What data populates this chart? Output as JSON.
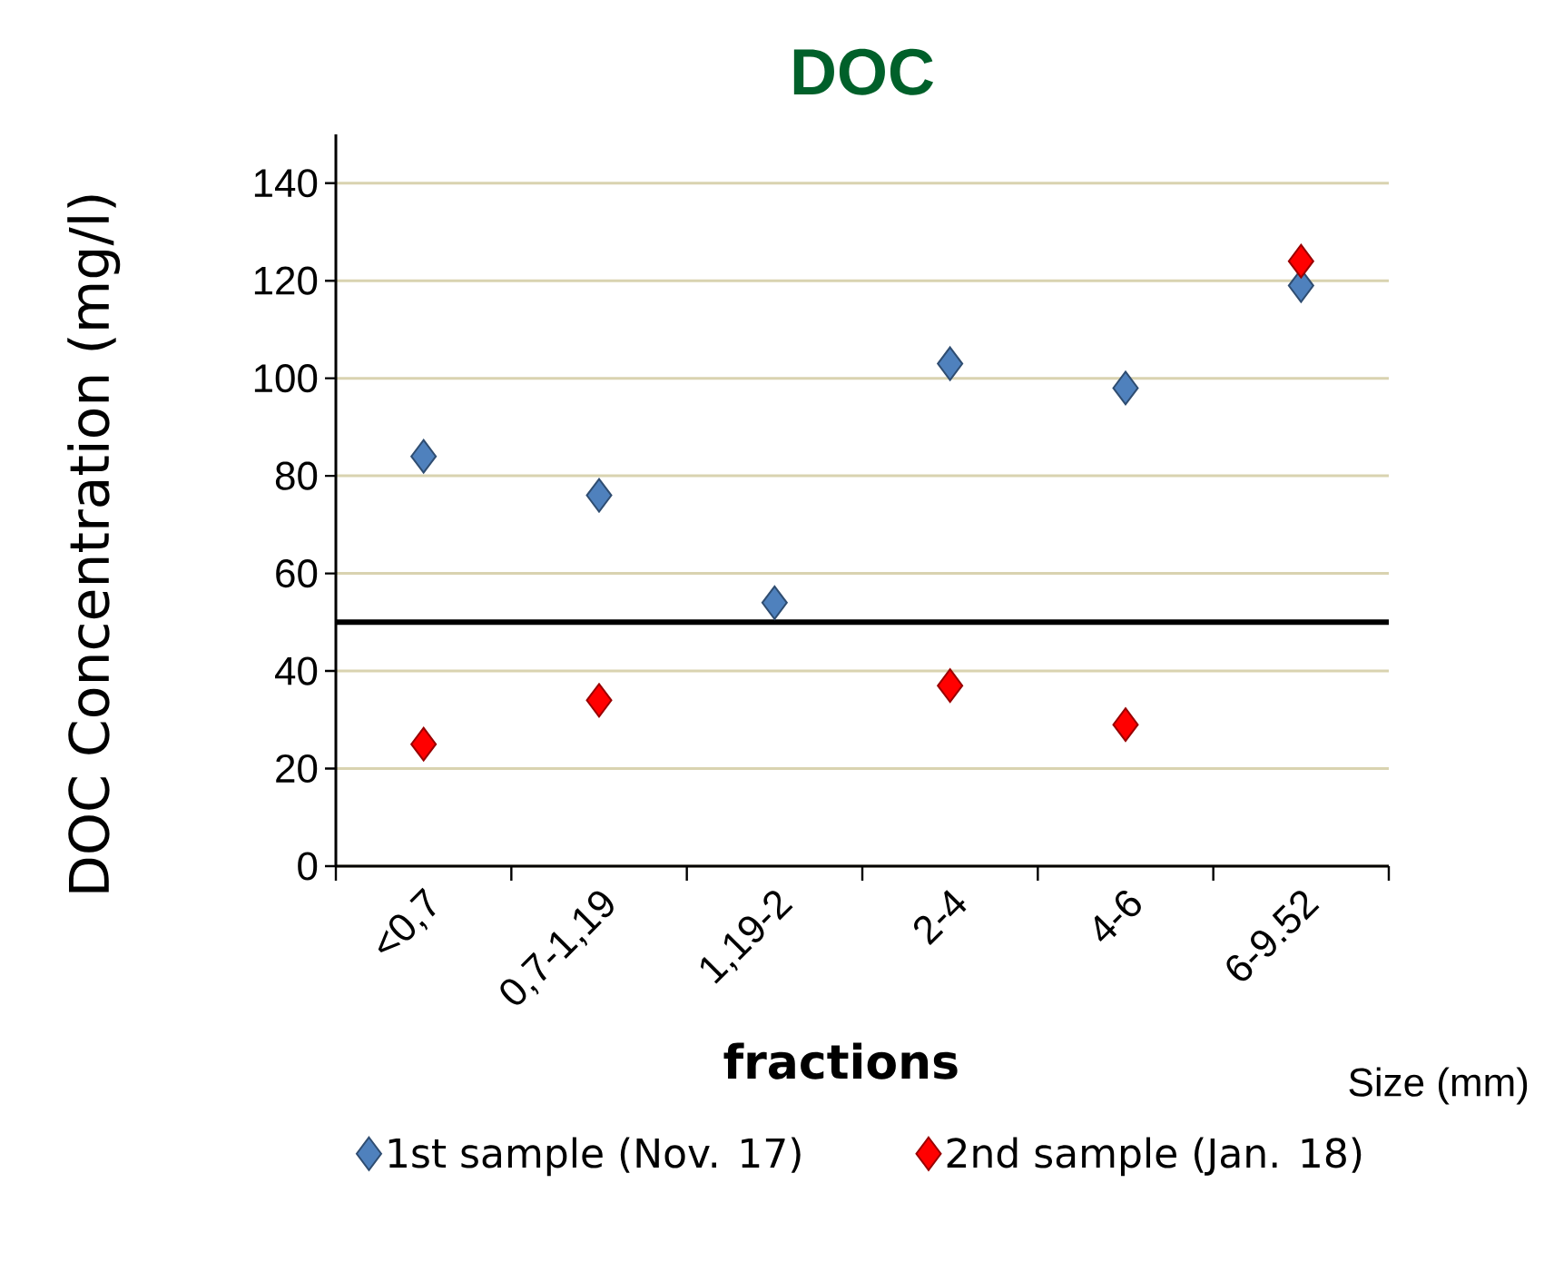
{
  "chart_data": {
    "type": "scatter",
    "title": "DOC",
    "xlabel": "fractions",
    "ylabel": "DOC Concentration (mg/l)",
    "categories": [
      "<0,7",
      "0,7-1,19",
      "1,19-2",
      "2-4",
      "4-6",
      "6-9.52"
    ],
    "series": [
      {
        "name": "1st sample (Nov. 17)",
        "color": "#4f81bd",
        "values": [
          84,
          76,
          54,
          103,
          98,
          119
        ]
      },
      {
        "name": "2nd sample (Jan. 18)",
        "color": "#ff0000",
        "values": [
          25,
          34,
          null,
          37,
          29,
          124
        ]
      }
    ],
    "ylim": [
      0,
      150
    ],
    "yticks": [
      0,
      20,
      40,
      60,
      80,
      100,
      120,
      140
    ],
    "ref_lines": [
      {
        "axis": "y",
        "value": 50,
        "color": "#000000"
      }
    ],
    "annotations": [
      "Size (mm)"
    ],
    "grid": "y",
    "legend": "bottom",
    "marker": "diamond"
  }
}
